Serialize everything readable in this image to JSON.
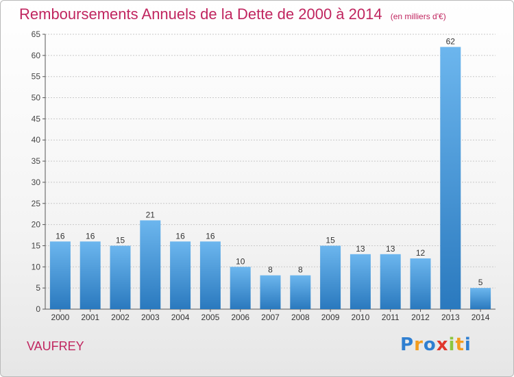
{
  "title": "Remboursements Annuels de la Dette de 2000 à 2014",
  "unit_note": "(en milliers d'€)",
  "location": "VAUFREY",
  "brand": {
    "letters": [
      "P",
      "r",
      "o",
      "x",
      "i",
      "t",
      "i"
    ],
    "colors": [
      "#2f7fd1",
      "#f39c1e",
      "#2f7fd1",
      "#e0362c",
      "#8cc63f",
      "#f39c1e",
      "#2f7fd1"
    ]
  },
  "colors": {
    "title": "#c0255f",
    "bar_top": "#6cb6ee",
    "bar_bottom": "#2a79be",
    "grid": "#c8c8c8"
  },
  "chart_data": {
    "type": "bar",
    "categories": [
      "2000",
      "2001",
      "2002",
      "2003",
      "2004",
      "2005",
      "2006",
      "2007",
      "2008",
      "2009",
      "2010",
      "2011",
      "2012",
      "2013",
      "2014"
    ],
    "values": [
      16,
      16,
      15,
      21,
      16,
      16,
      10,
      8,
      8,
      15,
      13,
      13,
      12,
      62,
      5
    ],
    "ylim": [
      0,
      65
    ],
    "yticks": [
      0,
      5,
      10,
      15,
      20,
      25,
      30,
      35,
      40,
      45,
      50,
      55,
      60,
      65
    ],
    "grid": true,
    "title": "Remboursements Annuels de la Dette de 2000 à 2014",
    "xlabel": "",
    "ylabel": "(en milliers d'€)"
  }
}
